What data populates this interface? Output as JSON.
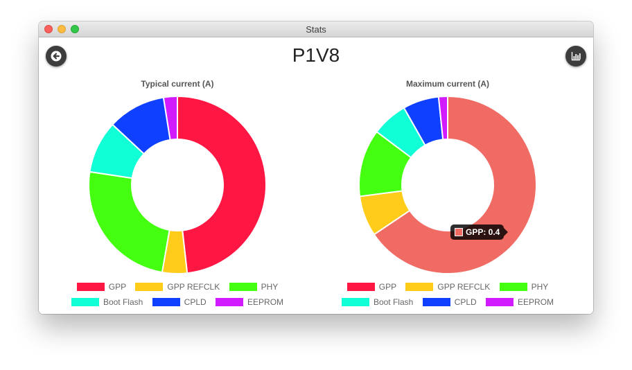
{
  "window": {
    "title": "Stats"
  },
  "header": {
    "title": "P1V8"
  },
  "icons": {
    "back": "arrow-left-icon",
    "stats": "bar-chart-icon"
  },
  "tooltip": {
    "label": "GPP: 0.4",
    "color": "#f06b63"
  },
  "legend_rows": [
    [
      "GPP",
      "GPP REFCLK",
      "PHY"
    ],
    [
      "Boot Flash",
      "CPLD",
      "EEPROM"
    ]
  ],
  "chart_data": [
    {
      "type": "pie",
      "donut": true,
      "title": "Typical current (A)",
      "categories": [
        "GPP",
        "GPP REFCLK",
        "PHY",
        "Boot Flash",
        "CPLD",
        "EEPROM"
      ],
      "values": [
        0.48,
        0.045,
        0.245,
        0.095,
        0.105,
        0.025
      ],
      "colors": [
        "#ff1744",
        "#ffcc1a",
        "#44ff10",
        "#10ffd7",
        "#1040ff",
        "#d21aff"
      ],
      "legend": "bottom"
    },
    {
      "type": "pie",
      "donut": true,
      "title": "Maximum current (A)",
      "categories": [
        "GPP",
        "GPP REFCLK",
        "PHY",
        "Boot Flash",
        "CPLD",
        "EEPROM"
      ],
      "values": [
        0.4,
        0.045,
        0.075,
        0.04,
        0.04,
        0.01
      ],
      "colors": [
        "#f06b63",
        "#ffcc1a",
        "#44ff10",
        "#10ffd7",
        "#1040ff",
        "#d21aff"
      ],
      "legend_colors": [
        "#ff1744",
        "#ffcc1a",
        "#44ff10",
        "#10ffd7",
        "#1040ff",
        "#d21aff"
      ],
      "highlighted": "GPP",
      "legend": "bottom"
    }
  ]
}
